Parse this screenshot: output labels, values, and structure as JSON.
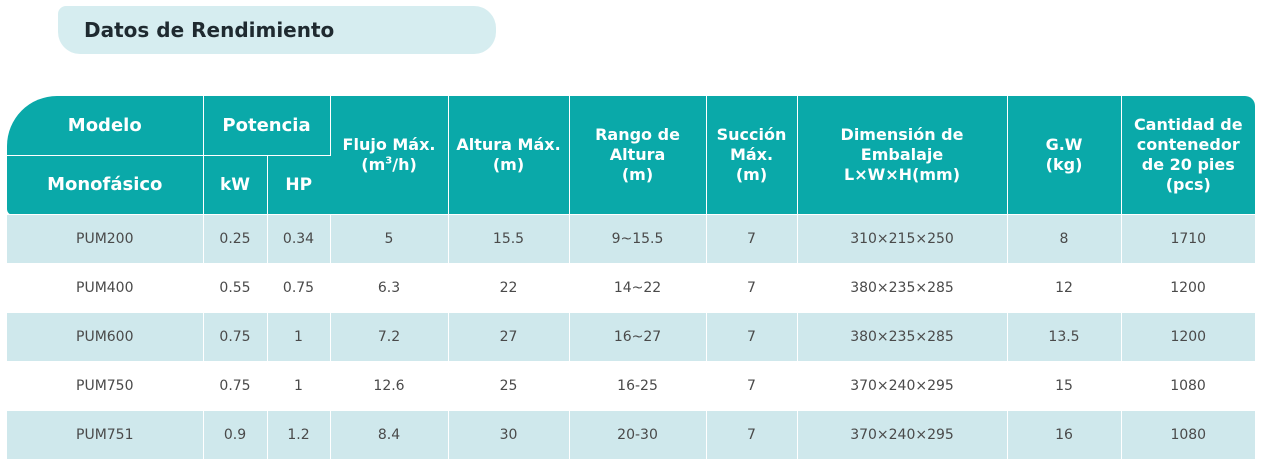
{
  "title": "Datos de Rendimiento",
  "colors": {
    "header_bg": "#0aa9a9",
    "stripe_bg": "#cfe8ec",
    "title_bg": "#d6edf0"
  },
  "table": {
    "headers": {
      "modelo": "Modelo",
      "monofasico": "Monofásico",
      "potencia": "Potencia",
      "kw": "kW",
      "hp": "HP",
      "flujo_line1": "Flujo Máx.",
      "flujo_unit_pre": "(m",
      "flujo_unit_sup": "3",
      "flujo_unit_post": "/h)",
      "altura_line1": "Altura Máx.",
      "altura_line2": "(m)",
      "rango_line1": "Rango de",
      "rango_line2": "Altura",
      "rango_line3": "(m)",
      "succion_line1": "Succión",
      "succion_line2": "Máx.",
      "succion_line3": "(m)",
      "dim_line1": "Dimensión de",
      "dim_line2": "Embalaje",
      "dim_line3": "L×W×H(mm)",
      "gw_line1": "G.W",
      "gw_line2": "(kg)",
      "cant_line1": "Cantidad de",
      "cant_line2": "contenedor",
      "cant_line3": "de 20 pies",
      "cant_line4": "(pcs)"
    },
    "rows": [
      [
        "PUM200",
        "0.25",
        "0.34",
        "5",
        "15.5",
        "9~15.5",
        "7",
        "310×215×250",
        "8",
        "1710"
      ],
      [
        "PUM400",
        "0.55",
        "0.75",
        "6.3",
        "22",
        "14~22",
        "7",
        "380×235×285",
        "12",
        "1200"
      ],
      [
        "PUM600",
        "0.75",
        "1",
        "7.2",
        "27",
        "16~27",
        "7",
        "380×235×285",
        "13.5",
        "1200"
      ],
      [
        "PUM750",
        "0.75",
        "1",
        "12.6",
        "25",
        "16-25",
        "7",
        "370×240×295",
        "15",
        "1080"
      ],
      [
        "PUM751",
        "0.9",
        "1.2",
        "8.4",
        "30",
        "20-30",
        "7",
        "370×240×295",
        "16",
        "1080"
      ]
    ]
  }
}
